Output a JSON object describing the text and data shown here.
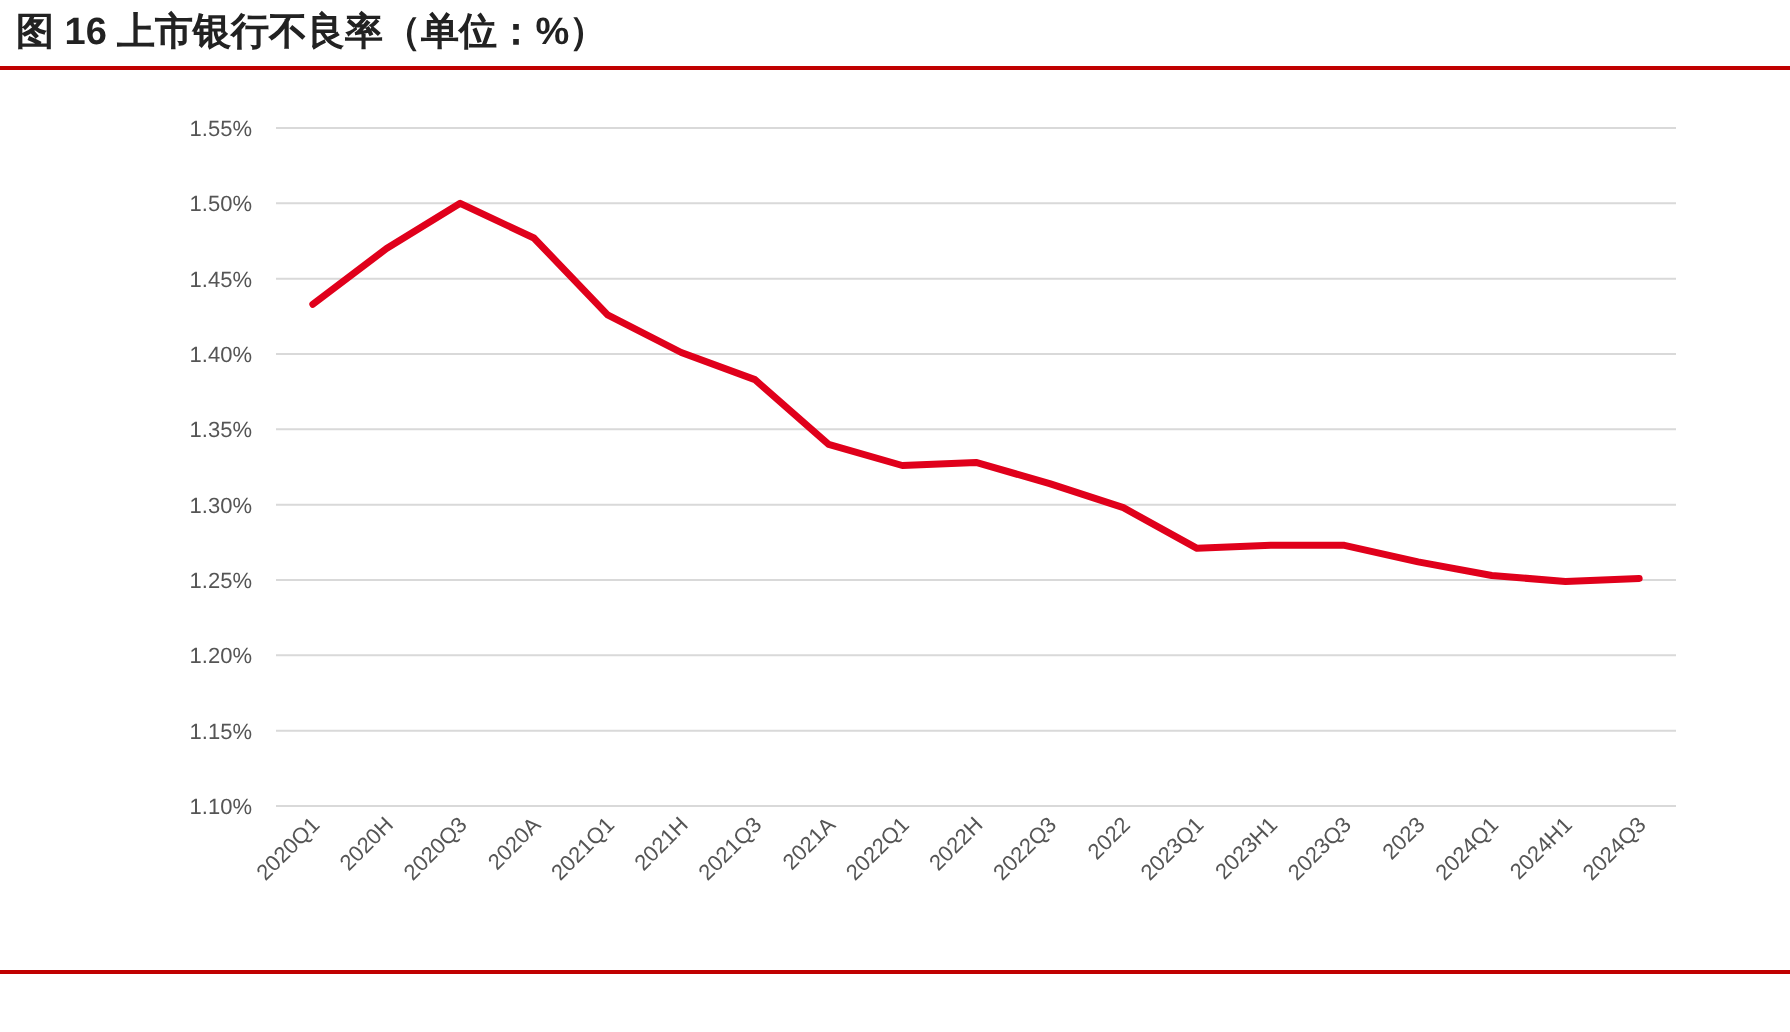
{
  "chart_data": {
    "type": "line",
    "title": "图 16 上市银行不良率（单位：%）",
    "categories": [
      "2020Q1",
      "2020H",
      "2020Q3",
      "2020A",
      "2021Q1",
      "2021H",
      "2021Q3",
      "2021A",
      "2022Q1",
      "2022H",
      "2022Q3",
      "2022",
      "2023Q1",
      "2023H1",
      "2023Q3",
      "2023",
      "2024Q1",
      "2024H1",
      "2024Q3"
    ],
    "series": [
      {
        "color": "#e0001b",
        "values": [
          1.433,
          1.47,
          1.5,
          1.477,
          1.426,
          1.401,
          1.383,
          1.34,
          1.326,
          1.328,
          1.314,
          1.298,
          1.271,
          1.273,
          1.273,
          1.262,
          1.253,
          1.249,
          1.251
        ]
      }
    ],
    "ylim": [
      1.1,
      1.55
    ],
    "yticks": [
      {
        "value": 1.1,
        "label": "1.10%"
      },
      {
        "value": 1.15,
        "label": "1.15%"
      },
      {
        "value": 1.2,
        "label": "1.20%"
      },
      {
        "value": 1.25,
        "label": "1.25%"
      },
      {
        "value": 1.3,
        "label": "1.30%"
      },
      {
        "value": 1.35,
        "label": "1.35%"
      },
      {
        "value": 1.4,
        "label": "1.40%"
      },
      {
        "value": 1.45,
        "label": "1.45%"
      },
      {
        "value": 1.5,
        "label": "1.50%"
      },
      {
        "value": 1.55,
        "label": "1.55%"
      }
    ],
    "grid": "y",
    "marker": "none",
    "line_style": "solid"
  }
}
